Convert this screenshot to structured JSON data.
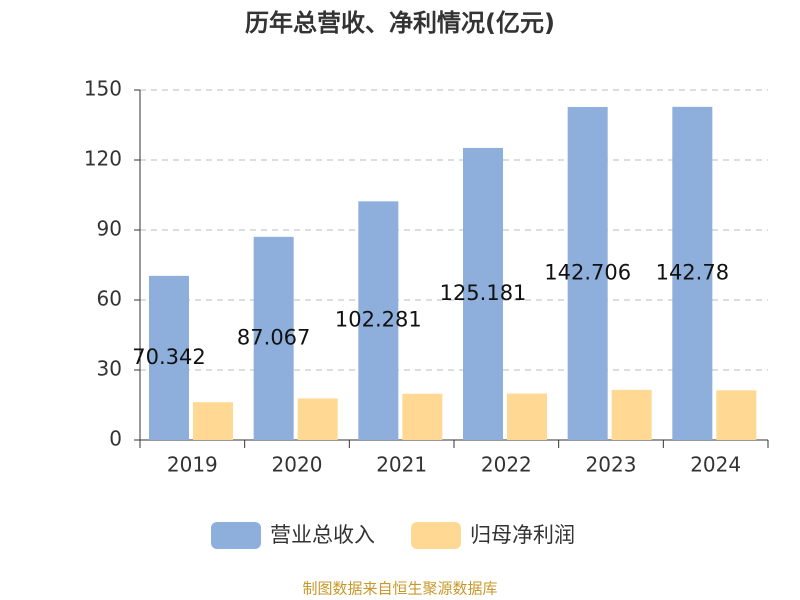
{
  "chart_data": {
    "type": "bar",
    "title": "历年总营收、净利情况(亿元)",
    "categories": [
      "2019",
      "2020",
      "2021",
      "2022",
      "2023",
      "2024"
    ],
    "series": [
      {
        "name": "营业总收入",
        "color": "#8eaedb",
        "values": [
          70.342,
          87.067,
          102.281,
          125.181,
          142.706,
          142.78
        ],
        "show_labels": true
      },
      {
        "name": "归母净利润",
        "color": "#ffd993",
        "values": [
          16.2,
          17.8,
          19.8,
          19.9,
          21.5,
          21.3
        ],
        "show_labels": false
      }
    ],
    "ylim": [
      0,
      150
    ],
    "yticks": [
      0,
      30,
      60,
      90,
      120,
      150
    ],
    "grid": true,
    "source": "制图数据来自恒生聚源数据库"
  }
}
